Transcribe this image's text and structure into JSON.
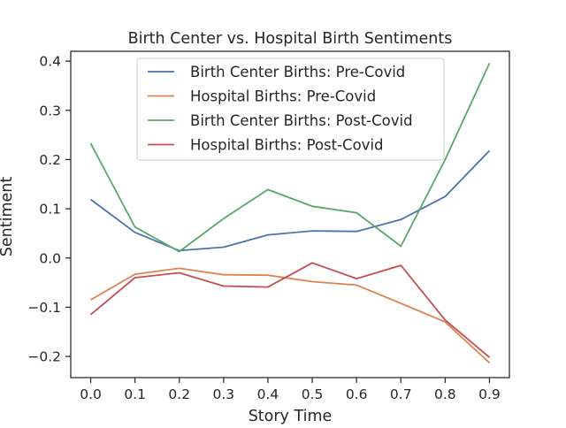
{
  "chart_data": {
    "type": "line",
    "title": "Birth Center vs. Hospital Birth Sentiments",
    "xlabel": "Story Time",
    "ylabel": "Sentiment",
    "x": [
      0.0,
      0.1,
      0.2,
      0.3,
      0.4,
      0.5,
      0.6,
      0.7,
      0.8,
      0.9
    ],
    "x_tick_labels": [
      "0.0",
      "0.1",
      "0.2",
      "0.3",
      "0.4",
      "0.5",
      "0.6",
      "0.7",
      "0.8",
      "0.9"
    ],
    "y_ticks": [
      -0.2,
      -0.1,
      0.0,
      0.1,
      0.2,
      0.3,
      0.4
    ],
    "y_tick_labels": [
      "−0.2",
      "−0.1",
      "0.0",
      "0.1",
      "0.2",
      "0.3",
      "0.4"
    ],
    "xlim": [
      -0.045,
      0.945
    ],
    "ylim": [
      -0.243,
      0.42
    ],
    "grid": false,
    "legend_position": "upper-center",
    "series": [
      {
        "name": "Birth Center Births: Pre-Covid",
        "color": "#4c72b0",
        "values": [
          0.119,
          0.052,
          0.015,
          0.022,
          0.047,
          0.055,
          0.054,
          0.078,
          0.125,
          0.218
        ]
      },
      {
        "name": "Hospital Births: Pre-Covid",
        "color": "#dd8452",
        "values": [
          -0.085,
          -0.033,
          -0.021,
          -0.034,
          -0.035,
          -0.048,
          -0.055,
          -0.092,
          -0.13,
          -0.213
        ]
      },
      {
        "name": "Birth Center Births: Post-Covid",
        "color": "#55a868",
        "values": [
          0.233,
          0.063,
          0.013,
          0.08,
          0.139,
          0.105,
          0.092,
          0.024,
          0.2,
          0.396
        ]
      },
      {
        "name": "Hospital Births: Post-Covid",
        "color": "#c44e52",
        "values": [
          -0.115,
          -0.04,
          -0.03,
          -0.057,
          -0.059,
          -0.01,
          -0.042,
          -0.015,
          -0.126,
          -0.202
        ]
      }
    ]
  }
}
